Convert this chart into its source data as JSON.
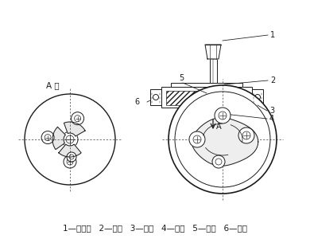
{
  "caption": "1—供料斗   2—粉罩   3—底盖   4—转轴   5—刮板   6—圆盘",
  "bg_color": "#ffffff",
  "line_color": "#1a1a1a",
  "label_1": "1",
  "label_2": "2",
  "label_3": "3",
  "label_4": "4",
  "label_5": "5",
  "label_6": "6",
  "label_A_dir": "A 向",
  "arrow_label": "A",
  "font_size_caption": 7.5,
  "font_size_label": 7
}
